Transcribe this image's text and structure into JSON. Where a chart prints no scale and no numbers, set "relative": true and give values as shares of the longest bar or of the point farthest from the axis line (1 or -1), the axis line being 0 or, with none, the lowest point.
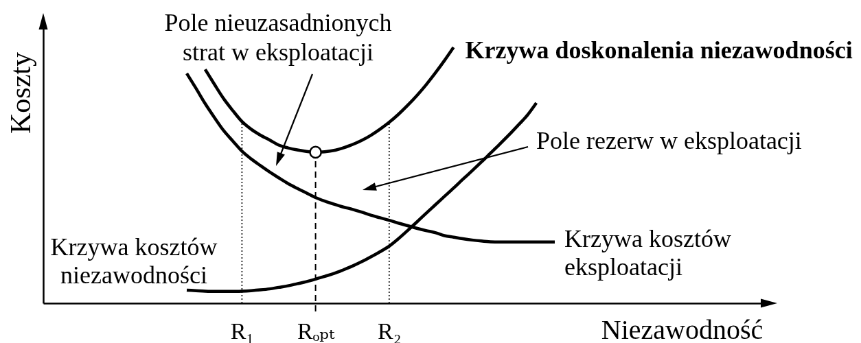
{
  "chart_data": {
    "type": "line",
    "relative": true,
    "xlabel": "Niezawodność",
    "ylabel": "Koszty",
    "categories": [
      null,
      null,
      null,
      null,
      null,
      null,
      null,
      null,
      null,
      null,
      null,
      null,
      null,
      null,
      null,
      null,
      null,
      null,
      null,
      null,
      null,
      "R₁",
      null,
      null,
      null,
      null,
      null,
      null,
      null,
      "Rₒₚₜ",
      null,
      null,
      null,
      null,
      null,
      null,
      null,
      "R₂",
      null,
      null,
      null,
      null,
      null,
      null,
      null,
      null,
      null,
      null,
      null,
      null,
      null,
      null,
      null,
      null,
      null,
      null,
      null,
      null,
      null,
      null,
      null,
      null,
      null,
      null,
      null,
      null,
      null,
      null,
      null,
      null,
      null,
      null,
      null,
      null,
      null,
      null,
      null,
      null
    ],
    "series": [
      {
        "name": "Krzywa doskonalenia niezawodności",
        "color": "#000000",
        "values": [
          null,
          null,
          null,
          null,
          null,
          null,
          null,
          null,
          null,
          null,
          null,
          null,
          null,
          null,
          null,
          null,
          null,
          0.914,
          0.856,
          0.8,
          0.753,
          0.71,
          0.68,
          0.657,
          0.638,
          0.618,
          0.607,
          0.599,
          0.593,
          0.59,
          0.592,
          0.597,
          0.607,
          0.62,
          0.636,
          0.656,
          0.68,
          0.707,
          0.738,
          0.773,
          0.811,
          0.853,
          0.899,
          0.948,
          1,
          null,
          null,
          null,
          null,
          null,
          null,
          null,
          null,
          null,
          null,
          null,
          null,
          null,
          null,
          null,
          null,
          null,
          null,
          null,
          null,
          null,
          null,
          null,
          null,
          null,
          null,
          null,
          null,
          null,
          null,
          null,
          null,
          null
        ]
      },
      {
        "name": "Krzywa kosztów eksploatacji",
        "color": "#000000",
        "values": [
          null,
          null,
          null,
          null,
          null,
          null,
          null,
          null,
          null,
          null,
          null,
          null,
          null,
          null,
          null,
          0.898,
          0.84,
          0.78,
          0.726,
          0.675,
          0.634,
          0.594,
          0.564,
          0.538,
          0.513,
          0.49,
          0.468,
          0.449,
          0.431,
          0.413,
          0.399,
          0.387,
          0.376,
          0.367,
          0.356,
          0.344,
          0.334,
          0.324,
          0.313,
          0.303,
          0.293,
          0.284,
          0.276,
          0.264,
          0.258,
          0.252,
          0.247,
          0.243,
          0.24,
          0.239,
          0.239,
          0.239,
          0.239,
          0.239,
          0.239,
          0.239,
          null,
          null,
          null,
          null,
          null,
          null,
          null,
          null,
          null,
          null,
          null,
          null,
          null,
          null,
          null,
          null,
          null,
          null,
          null,
          null,
          null,
          null
        ]
      },
      {
        "name": "Krzywa kosztów niezawodności",
        "color": "#000000",
        "values": [
          null,
          null,
          null,
          null,
          null,
          null,
          null,
          null,
          null,
          null,
          null,
          null,
          null,
          null,
          null,
          0.051,
          0.049,
          0.047,
          0.046,
          0.046,
          0.046,
          0.047,
          0.049,
          0.052,
          0.056,
          0.062,
          0.068,
          0.076,
          0.084,
          0.094,
          0.105,
          0.116,
          0.13,
          0.145,
          0.162,
          0.181,
          0.201,
          0.223,
          0.252,
          0.284,
          0.317,
          0.351,
          0.384,
          0.417,
          0.45,
          0.484,
          0.517,
          0.551,
          0.586,
          0.621,
          0.657,
          0.695,
          0.734,
          0.783,
          null,
          null,
          null,
          null,
          null,
          null,
          null,
          null,
          null,
          null,
          null,
          null,
          null,
          null,
          null,
          null,
          null,
          null,
          null,
          null,
          null,
          null,
          null,
          null
        ]
      },
      {
        "type": "scatter",
        "x": [
          "Rₒₚₜ"
        ],
        "values": [
          0.59
        ],
        "color": "#ffffff",
        "marker": "circle"
      }
    ],
    "ref_lines": [
      {
        "axis": "x",
        "value": "R₁",
        "line_style": "dotted"
      },
      {
        "axis": "x",
        "value": "Rₒₚₜ",
        "line_style": "dashed"
      },
      {
        "axis": "x",
        "value": "R₂",
        "line_style": "dotted"
      }
    ],
    "annotations": [
      "Pole nieuzasadnionych strat w eksploatacji",
      "Pole rezerw w eksploatacji"
    ]
  }
}
